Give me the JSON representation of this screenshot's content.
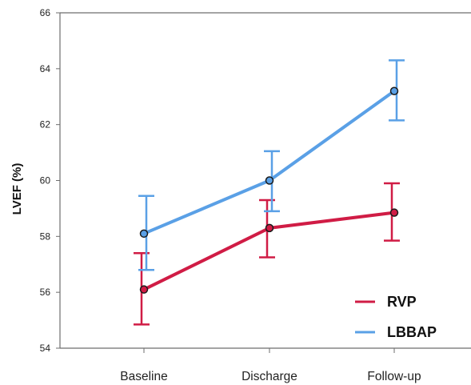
{
  "chart_data": {
    "type": "line",
    "title": "",
    "xlabel": "",
    "ylabel": "LVEF (%)",
    "categories": [
      "Baseline",
      "Discharge",
      "Follow-up"
    ],
    "ylim": [
      54,
      66
    ],
    "yticks": [
      54,
      56,
      58,
      60,
      62,
      64,
      66
    ],
    "grid": false,
    "legend_position": "bottom-right",
    "series": [
      {
        "name": "RVP",
        "color": "#d01c45",
        "values": [
          56.1,
          58.3,
          58.85
        ],
        "error_low": [
          54.85,
          57.25,
          57.85
        ],
        "error_high": [
          57.4,
          59.3,
          59.9
        ]
      },
      {
        "name": "LBBAP",
        "color": "#5aa0e6",
        "values": [
          58.1,
          60.0,
          63.2
        ],
        "error_low": [
          56.8,
          58.9,
          62.15
        ],
        "error_high": [
          59.45,
          61.05,
          64.3
        ]
      }
    ]
  }
}
